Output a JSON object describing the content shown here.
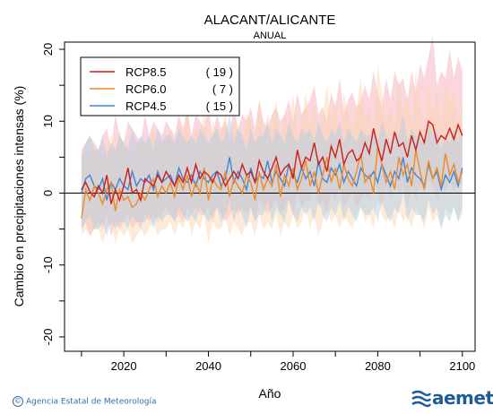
{
  "chart_data": {
    "type": "line",
    "title": "ALACANT/ALICANTE",
    "subtitle": "ANUAL",
    "xlabel": "Año",
    "ylabel": "Cambio en precipitaciones intensas (%)",
    "xlim": [
      2006,
      2103
    ],
    "ylim": [
      -22,
      21
    ],
    "xticks": [
      2020,
      2040,
      2060,
      2080,
      2100
    ],
    "yticks": [
      -20,
      -10,
      0,
      10,
      20
    ],
    "x_start": 2010,
    "legend_position": "top-left",
    "series": [
      {
        "name": "RCP8.5",
        "count": "( 19 )",
        "color": "#cc1f1a",
        "band_color": "#f4a6b4",
        "values": [
          0.5,
          1.5,
          0.2,
          -0.5,
          1.0,
          0.0,
          2.5,
          -1.5,
          0.5,
          -1.0,
          1.0,
          3.5,
          0.0,
          0.5,
          -1.0,
          2.0,
          1.5,
          1.0,
          2.5,
          1.5,
          3.0,
          2.0,
          1.0,
          2.5,
          1.5,
          3.5,
          1.5,
          4.0,
          2.0,
          3.0,
          2.5,
          1.5,
          3.0,
          2.5,
          1.0,
          2.0,
          3.0,
          2.0,
          4.0,
          2.5,
          3.0,
          1.5,
          4.5,
          3.0,
          2.0,
          3.5,
          5.0,
          2.5,
          3.5,
          4.0,
          2.0,
          6.0,
          3.5,
          5.0,
          4.5,
          7.0,
          4.0,
          5.0,
          3.0,
          6.5,
          5.0,
          7.5,
          4.0,
          5.5,
          6.0,
          4.5,
          5.0,
          7.0,
          5.5,
          9.0,
          6.5,
          4.5,
          7.5,
          5.5,
          8.5,
          6.5,
          7.0,
          5.0,
          8.0,
          6.0,
          8.5,
          7.0,
          10.0,
          9.5,
          7.0,
          8.0,
          7.5,
          9.0,
          7.5,
          9.5,
          8.0
        ],
        "band_hi": [
          6,
          7,
          8,
          7,
          6,
          8,
          9,
          6,
          11,
          8,
          7,
          10,
          9,
          8,
          7,
          11,
          8,
          10,
          9,
          8,
          10,
          9,
          8,
          11,
          9,
          12,
          8,
          11,
          10,
          9,
          12,
          8,
          11,
          9,
          10,
          8,
          12,
          9,
          11,
          10,
          12,
          9,
          13,
          10,
          9,
          11,
          12,
          10,
          11,
          13,
          10,
          14,
          11,
          12,
          13,
          15,
          11,
          12,
          10,
          14,
          12,
          16,
          11,
          13,
          14,
          12,
          13,
          15,
          13,
          17,
          14,
          12,
          16,
          13,
          17,
          15,
          16,
          13,
          17,
          14,
          18,
          16,
          19,
          22,
          15,
          17,
          16,
          20,
          16,
          19,
          17
        ],
        "band_lo": [
          -5,
          -4,
          -6,
          -5,
          -4,
          -5,
          -3,
          -6,
          -4,
          -5,
          -4,
          -3,
          -5,
          -4,
          -5,
          -3,
          -4,
          -3,
          -4,
          -3,
          -2,
          -3,
          -4,
          -3,
          -4,
          -2,
          -3,
          -2,
          -3,
          -3,
          -2,
          -4,
          -2,
          -3,
          -4,
          -3,
          -2,
          -3,
          -2,
          -3,
          -2,
          -4,
          -1,
          -2,
          -3,
          -2,
          -1,
          -3,
          -2,
          -1,
          -3,
          0,
          -2,
          -1,
          -1,
          1,
          -2,
          -1,
          -3,
          0,
          -1,
          1,
          -2,
          -1,
          0,
          -2,
          -1,
          0,
          -1,
          2,
          0,
          -2,
          1,
          -1,
          2,
          0,
          1,
          -2,
          1,
          -1,
          1,
          0,
          2,
          1,
          -1,
          1,
          0,
          2,
          0,
          2,
          1
        ]
      },
      {
        "name": "RCP6.0",
        "count": "(  7 )",
        "color": "#f08a24",
        "band_color": "#fbd3a8",
        "values": [
          -3.5,
          0.5,
          -1.0,
          1.0,
          0.0,
          -1.5,
          0.5,
          1.5,
          -2.5,
          0.5,
          -1.0,
          -0.5,
          -2.0,
          -1.5,
          0.0,
          -1.0,
          0.5,
          2.0,
          -0.5,
          1.0,
          0.0,
          1.5,
          -0.5,
          2.0,
          0.5,
          2.5,
          -0.5,
          1.5,
          0.0,
          3.5,
          -1.0,
          2.0,
          1.0,
          0.5,
          3.0,
          -0.5,
          2.0,
          1.0,
          0.0,
          2.5,
          1.5,
          -1.0,
          3.0,
          0.5,
          2.0,
          1.0,
          4.0,
          -0.5,
          2.5,
          1.0,
          3.5,
          0.5,
          2.0,
          4.5,
          1.0,
          3.0,
          0.0,
          2.5,
          5.0,
          1.5,
          3.5,
          0.5,
          4.0,
          2.0,
          1.0,
          3.0,
          5.5,
          1.5,
          2.5,
          0.0,
          6.5,
          4.0,
          1.5,
          3.0,
          0.5,
          5.0,
          2.5,
          4.0,
          1.0,
          6.0,
          3.0,
          0.5,
          4.5,
          2.0,
          3.5,
          1.0,
          5.5,
          2.5,
          4.0,
          1.5,
          3.0
        ],
        "band_hi": [
          5,
          6,
          5,
          7,
          6,
          5,
          7,
          8,
          5,
          9,
          6,
          7,
          5,
          6,
          8,
          6,
          7,
          9,
          6,
          8,
          7,
          9,
          6,
          10,
          8,
          11,
          6,
          9,
          7,
          12,
          6,
          10,
          9,
          8,
          12,
          6,
          10,
          9,
          7,
          11,
          10,
          7,
          13,
          8,
          11,
          9,
          13,
          7,
          11,
          9,
          14,
          8,
          10,
          14,
          9,
          12,
          8,
          11,
          15,
          10,
          13,
          8,
          14,
          11,
          9,
          12,
          16,
          10,
          12,
          8,
          18,
          14,
          10,
          12,
          9,
          16,
          11,
          14,
          9,
          17,
          12,
          9,
          15,
          11,
          14,
          9,
          16,
          12,
          14,
          10,
          12
        ],
        "band_lo": [
          -6,
          -5,
          -6,
          -5,
          -5,
          -7,
          -5,
          -4,
          -7,
          -5,
          -6,
          -5,
          -7,
          -6,
          -5,
          -6,
          -5,
          -4,
          -6,
          -5,
          -5,
          -4,
          -6,
          -4,
          -5,
          -3,
          -6,
          -4,
          -5,
          -3,
          -7,
          -4,
          -5,
          -5,
          -3,
          -6,
          -4,
          -5,
          -6,
          -4,
          -4,
          -6,
          -3,
          -5,
          -4,
          -5,
          -3,
          -6,
          -4,
          -5,
          -3,
          -5,
          -4,
          -2,
          -5,
          -3,
          -6,
          -4,
          -2,
          -4,
          -3,
          -5,
          -3,
          -4,
          -5,
          -3,
          -2,
          -4,
          -3,
          -5,
          -1,
          -3,
          -4,
          -3,
          -5,
          -2,
          -4,
          -3,
          -5,
          -2,
          -3,
          -5,
          -2,
          -4,
          -3,
          -5,
          -2,
          -3,
          -2,
          -4,
          -3
        ]
      },
      {
        "name": "RCP4.5",
        "count": "( 15 )",
        "color": "#3f86d4",
        "band_color": "#a9cbe8",
        "values": [
          0.0,
          2.0,
          2.5,
          1.0,
          0.5,
          2.0,
          -1.0,
          1.5,
          0.5,
          2.0,
          1.0,
          0.5,
          3.0,
          1.0,
          2.0,
          1.5,
          2.5,
          0.5,
          3.0,
          1.5,
          2.0,
          2.5,
          1.0,
          3.5,
          2.0,
          1.5,
          2.5,
          1.0,
          3.0,
          2.0,
          1.5,
          2.5,
          3.0,
          1.0,
          2.0,
          5.0,
          1.5,
          3.0,
          2.0,
          0.5,
          3.5,
          1.5,
          2.5,
          2.0,
          4.5,
          1.5,
          3.0,
          2.0,
          1.0,
          4.0,
          2.5,
          1.5,
          3.5,
          2.0,
          3.0,
          1.0,
          4.5,
          2.0,
          1.5,
          3.5,
          2.5,
          4.0,
          1.5,
          3.0,
          2.0,
          1.0,
          3.5,
          2.5,
          2.0,
          3.0,
          1.5,
          4.0,
          2.5,
          1.0,
          3.0,
          2.0,
          5.0,
          1.5,
          3.5,
          2.5,
          2.0,
          1.0,
          4.0,
          2.0,
          3.0,
          0.5,
          2.5,
          1.5,
          3.0,
          1.0,
          3.5
        ],
        "band_hi": [
          5,
          7,
          8,
          6,
          6,
          8,
          5,
          7,
          6,
          8,
          7,
          6,
          9,
          7,
          8,
          7,
          8,
          6,
          9,
          7,
          8,
          8,
          7,
          9,
          8,
          7,
          8,
          7,
          9,
          8,
          7,
          8,
          9,
          7,
          8,
          11,
          7,
          9,
          8,
          6,
          9,
          7,
          8,
          8,
          10,
          7,
          9,
          8,
          7,
          10,
          8,
          7,
          9,
          8,
          9,
          7,
          10,
          8,
          7,
          9,
          8,
          10,
          7,
          9,
          8,
          7,
          9,
          8,
          8,
          9,
          7,
          10,
          8,
          7,
          9,
          8,
          11,
          7,
          9,
          8,
          8,
          7,
          10,
          8,
          9,
          6,
          8,
          7,
          9,
          7,
          9
        ],
        "band_lo": [
          -5,
          -4,
          -3,
          -5,
          -5,
          -4,
          -6,
          -4,
          -5,
          -4,
          -4,
          -5,
          -3,
          -4,
          -4,
          -4,
          -3,
          -5,
          -3,
          -4,
          -3,
          -3,
          -4,
          -2,
          -3,
          -4,
          -3,
          -4,
          -2,
          -3,
          -4,
          -3,
          -2,
          -4,
          -3,
          -1,
          -4,
          -2,
          -3,
          -5,
          -2,
          -4,
          -3,
          -3,
          -1,
          -4,
          -2,
          -3,
          -4,
          -1,
          -3,
          -4,
          -2,
          -3,
          -2,
          -4,
          -1,
          -3,
          -4,
          -2,
          -3,
          -1,
          -4,
          -2,
          -3,
          -4,
          -2,
          -3,
          -3,
          -2,
          -4,
          -1,
          -3,
          -4,
          -2,
          -3,
          0,
          -4,
          -2,
          -3,
          -3,
          -4,
          -1,
          -3,
          -2,
          -5,
          -3,
          -4,
          -2,
          -4,
          -2
        ]
      }
    ]
  },
  "footer": {
    "credit": "Agencia Estatal de Meteorología",
    "copyright_symbol": "©",
    "logo_text": "aemet"
  }
}
